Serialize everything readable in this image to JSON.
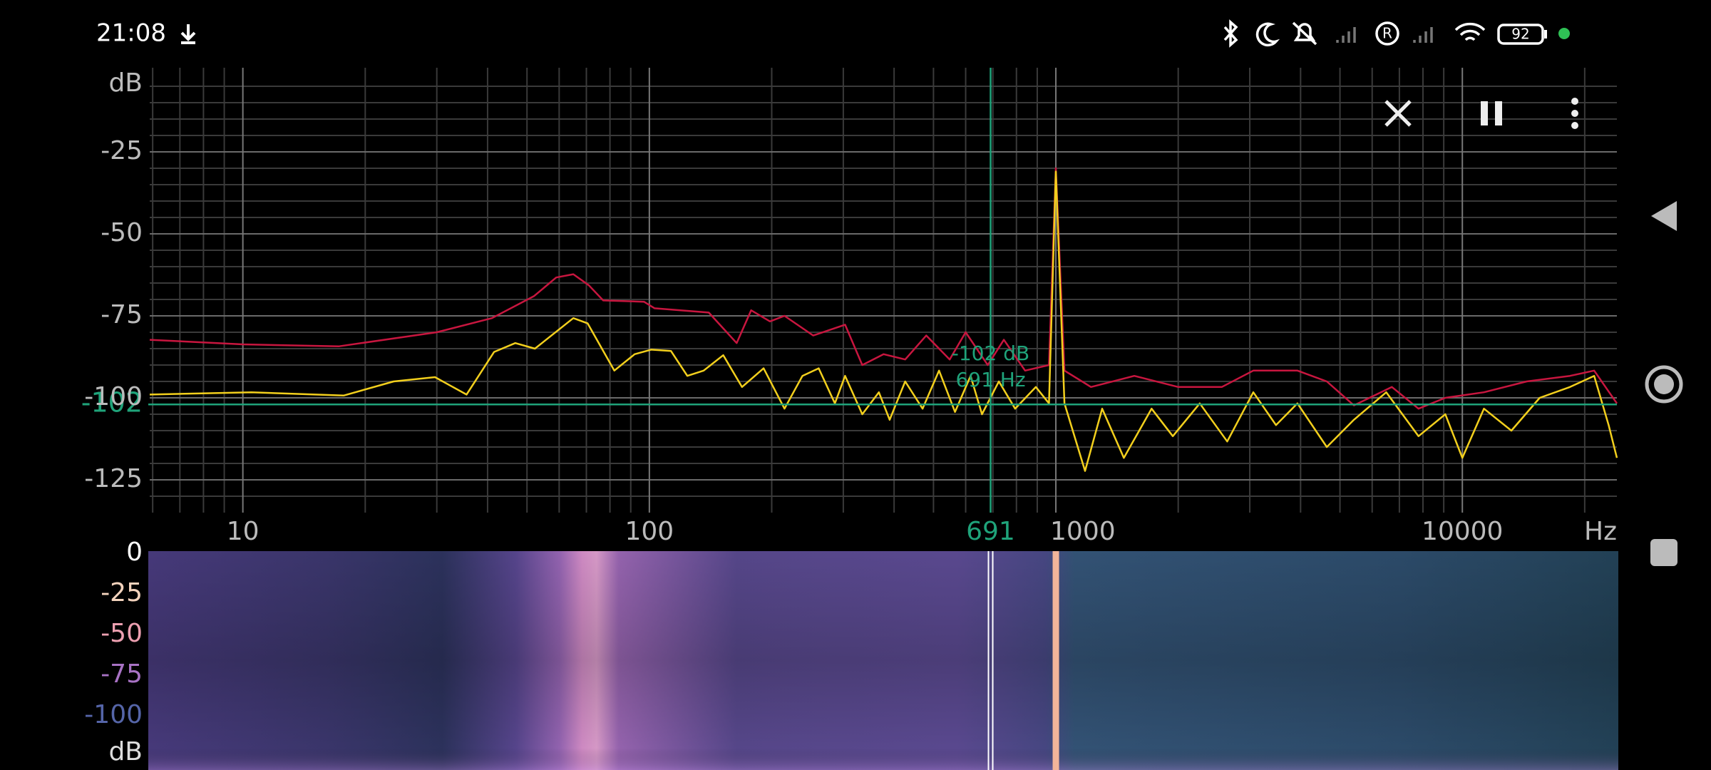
{
  "status_bar": {
    "time": "21:08",
    "battery": "92"
  },
  "spectrum": {
    "type": "line",
    "y_label": "dB",
    "x_label": "Hz",
    "xscale": "log",
    "xlim": [
      5.9,
      24000
    ],
    "ylim": [
      -135,
      0
    ],
    "xticks": [
      10,
      100,
      1000,
      10000
    ],
    "yticks": [
      -25,
      -50,
      -75,
      -100,
      -125
    ],
    "x_minor_ticks": [
      6,
      7,
      8,
      9,
      20,
      30,
      40,
      50,
      60,
      70,
      80,
      90,
      200,
      300,
      400,
      500,
      600,
      700,
      800,
      900,
      2000,
      3000,
      4000,
      5000,
      6000,
      7000,
      8000,
      9000,
      20000
    ],
    "y_minor_ticks": [
      -5,
      -10,
      -15,
      -20,
      -30,
      -35,
      -40,
      -45,
      -55,
      -60,
      -65,
      -70,
      -80,
      -85,
      -90,
      -95,
      -105,
      -110,
      -115,
      -120,
      -130
    ],
    "grid": true,
    "cursor": {
      "x": 691,
      "y": -102,
      "x_label": "691 Hz",
      "y_label": "-102 dB",
      "color": "#1fa37a"
    },
    "series": [
      {
        "color": "#c8163f",
        "x": [
          5.9,
          10,
          17.2,
          30,
          41,
          52,
          59,
          65,
          71,
          77,
          97,
          103,
          140,
          164,
          178,
          198,
          215,
          253,
          303,
          334,
          377,
          426,
          480,
          548,
          600,
          680,
          745,
          840,
          962,
          1000,
          1050,
          1220,
          1560,
          2000,
          2560,
          3060,
          3930,
          4640,
          5410,
          6710,
          7800,
          9080,
          11300,
          14400,
          18400,
          21100,
          24000
        ],
        "values": [
          -82.3,
          -83.7,
          -84.3,
          -80,
          -75.7,
          -69,
          -63.3,
          -62.3,
          -65.7,
          -70.3,
          -70.7,
          -72.7,
          -74,
          -83.3,
          -73.3,
          -76.7,
          -75,
          -81,
          -77.7,
          -90,
          -86.7,
          -88.3,
          -81,
          -88.3,
          -80,
          -90,
          -82.3,
          -91.7,
          -90,
          -30,
          -91.7,
          -96.7,
          -93.3,
          -96.7,
          -96.7,
          -91.7,
          -91.7,
          -95,
          -102.3,
          -96.7,
          -103.3,
          -100,
          -98.3,
          -95,
          -93.3,
          -91.7,
          -101.7
        ]
      },
      {
        "color": "#f2cf1d",
        "x": [
          5.9,
          10.5,
          17.7,
          23.5,
          29.7,
          35.5,
          41.5,
          46.8,
          52.3,
          65,
          70.5,
          82,
          92,
          101,
          113,
          124,
          136,
          152,
          169,
          191,
          215,
          238,
          261,
          286,
          303,
          334,
          367,
          390,
          426,
          470,
          516,
          565,
          617,
          658,
          724,
          794,
          893,
          962,
          1000,
          1050,
          1180,
          1300,
          1470,
          1720,
          1940,
          2260,
          2640,
          3060,
          3480,
          3930,
          4640,
          5410,
          6500,
          7800,
          9080,
          10000,
          11300,
          13200,
          15500,
          18400,
          21100,
          22900,
          24000
        ],
        "values": [
          -99,
          -98.3,
          -99.3,
          -95,
          -93.7,
          -99,
          -86,
          -83.3,
          -85,
          -75.7,
          -77.3,
          -91.7,
          -86.7,
          -85.3,
          -85.7,
          -93.3,
          -91.7,
          -87,
          -96.7,
          -91,
          -103.3,
          -93.3,
          -91,
          -101.7,
          -93.3,
          -105,
          -98.3,
          -106.7,
          -95,
          -103.3,
          -91.7,
          -104.3,
          -93.3,
          -105,
          -95,
          -103.3,
          -96.7,
          -101.7,
          -31,
          -101.7,
          -122.3,
          -103.3,
          -118.3,
          -103.3,
          -111.7,
          -101.7,
          -113.3,
          -98.3,
          -108.3,
          -101.7,
          -115,
          -106.7,
          -98.3,
          -111.7,
          -105,
          -118.3,
          -103.3,
          -110,
          -100,
          -96.7,
          -93.3,
          -108.3,
          -118.3
        ]
      }
    ]
  },
  "spectrogram": {
    "unit": "dB",
    "zlim": [
      0,
      -135
    ],
    "scale_ticks": [
      0,
      -25,
      -50,
      -75,
      -100
    ],
    "scale_colors": [
      "#ffffff",
      "#f3d3bd",
      "#ec9fb0",
      "#a872c4",
      "#5565a8"
    ]
  }
}
